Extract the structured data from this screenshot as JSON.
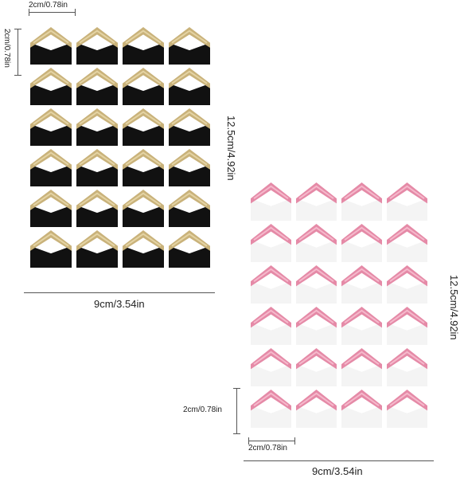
{
  "product_image": {
    "gold_sheet": {
      "top_dimension_label": "2cm/0.78in",
      "left_dimension_label": "2cm/0.78in",
      "height_label": "12.5cm/4.92in",
      "width_label": "9cm/3.54in",
      "rows": 6,
      "cols": 4,
      "corner_color": "#c9b27a",
      "corner_highlight": "#e4d3a3",
      "backing_color": "#111111"
    },
    "pink_sheet": {
      "left_dimension_label": "2cm/0.78in",
      "bottom_dimension_label": "2cm/0.78in",
      "height_label": "12.5cm/4.92in",
      "width_label": "9cm/3.54in",
      "rows": 6,
      "cols": 4,
      "corner_color": "#e58aa7",
      "corner_highlight": "#f5b8cb",
      "backing_color": "#f4f4f4"
    }
  }
}
